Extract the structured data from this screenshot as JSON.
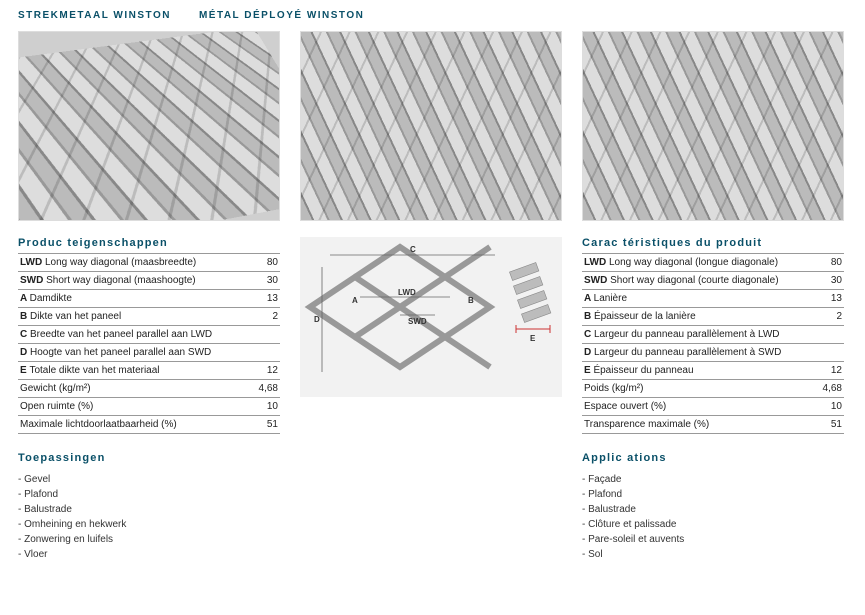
{
  "titles": {
    "nl": "STREKMETAAL WINSTON",
    "fr": "MÉTAL DÉPLOYÉ WINSTON"
  },
  "colors": {
    "heading": "#0a5068",
    "rule": "#999999",
    "text": "#333333"
  },
  "specs_nl": {
    "heading": "Produc teigenschappen",
    "rows": [
      {
        "code": "LWD",
        "label": "Long way diagonal (maasbreedte)",
        "value": "80"
      },
      {
        "code": "SWD",
        "label": "Short way diagonal (maashoogte)",
        "value": "30"
      },
      {
        "code": "A",
        "label": "Damdikte",
        "value": "13"
      },
      {
        "code": "B",
        "label": "Dikte van het paneel",
        "value": "2"
      },
      {
        "code": "C",
        "label": "Breedte van het paneel parallel aan LWD",
        "value": ""
      },
      {
        "code": "D",
        "label": "Hoogte van het paneel parallel aan SWD",
        "value": ""
      },
      {
        "code": "E",
        "label": "Totale dikte van het materiaal",
        "value": "12"
      },
      {
        "code": "",
        "label": "Gewicht (kg/m²)",
        "value": "4,68"
      },
      {
        "code": "",
        "label": "Open ruimte (%)",
        "value": "10"
      },
      {
        "code": "",
        "label": "Maximale lichtdoorlaatbaarheid (%)",
        "value": "51"
      }
    ]
  },
  "specs_fr": {
    "heading": "Carac téristiques du produit",
    "rows": [
      {
        "code": "LWD",
        "label": "Long way diagonal (longue diagonale)",
        "value": "80"
      },
      {
        "code": "SWD",
        "label": "Short way diagonal (courte diagonale)",
        "value": "30"
      },
      {
        "code": "A",
        "label": "Lanière",
        "value": "13"
      },
      {
        "code": "B",
        "label": "Épaisseur de la lanière",
        "value": "2"
      },
      {
        "code": "C",
        "label": "Largeur du panneau parallèlement à LWD",
        "value": ""
      },
      {
        "code": "D",
        "label": "Largeur du panneau parallèlement à SWD",
        "value": ""
      },
      {
        "code": "E",
        "label": "Épaisseur du panneau",
        "value": "12"
      },
      {
        "code": "",
        "label": "Poids (kg/m²)",
        "value": "4,68"
      },
      {
        "code": "",
        "label": "Espace ouvert (%)",
        "value": "10"
      },
      {
        "code": "",
        "label": "Transparence maximale (%)",
        "value": "51"
      }
    ]
  },
  "apps_nl": {
    "heading": "Toepassingen",
    "items": [
      "Gevel",
      "Plafond",
      "Balustrade",
      "Omheining en hekwerk",
      "Zonwering en luifels",
      "Vloer"
    ]
  },
  "apps_fr": {
    "heading": "Applic ations",
    "items": [
      "Façade",
      "Plafond",
      "Balustrade",
      "Clôture et palissade",
      "Pare-soleil et auvents",
      "Sol"
    ]
  },
  "diagram": {
    "labels": {
      "c": "C",
      "d": "D",
      "lwd": "LWD",
      "swd": "SWD",
      "a": "A",
      "b": "B",
      "e": "E"
    },
    "stroke": "#666666",
    "fill": "#d8d8d8",
    "arrow": "#cc3333"
  }
}
